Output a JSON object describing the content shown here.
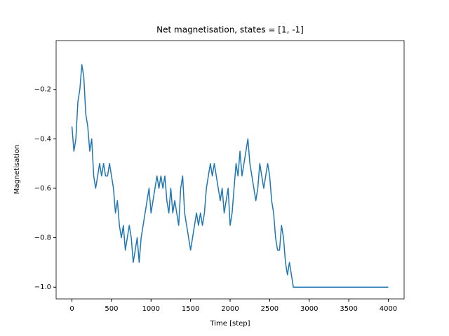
{
  "chart_data": {
    "type": "line",
    "title": "Net magnetisation, states = [1, -1]",
    "x_label": "Time [step]",
    "y_label": "Magnetisation",
    "x": [
      0,
      25,
      50,
      75,
      100,
      125,
      150,
      175,
      200,
      225,
      250,
      275,
      300,
      325,
      350,
      375,
      400,
      425,
      450,
      475,
      500,
      525,
      550,
      575,
      600,
      625,
      650,
      675,
      700,
      725,
      750,
      775,
      800,
      825,
      850,
      875,
      900,
      925,
      950,
      975,
      1000,
      1025,
      1050,
      1075,
      1100,
      1125,
      1150,
      1175,
      1200,
      1225,
      1250,
      1275,
      1300,
      1325,
      1350,
      1375,
      1400,
      1425,
      1450,
      1475,
      1500,
      1525,
      1550,
      1575,
      1600,
      1625,
      1650,
      1675,
      1700,
      1725,
      1750,
      1775,
      1800,
      1825,
      1850,
      1875,
      1900,
      1925,
      1950,
      1975,
      2000,
      2025,
      2050,
      2075,
      2100,
      2125,
      2150,
      2175,
      2200,
      2225,
      2250,
      2275,
      2300,
      2325,
      2350,
      2375,
      2400,
      2425,
      2450,
      2475,
      2500,
      2525,
      2550,
      2575,
      2600,
      2625,
      2650,
      2675,
      2700,
      2725,
      2750,
      2775,
      2800,
      4000
    ],
    "series": [
      {
        "name": "Magnetisation",
        "color": "#1f77b4",
        "values": [
          -0.35,
          -0.45,
          -0.4,
          -0.25,
          -0.2,
          -0.1,
          -0.15,
          -0.3,
          -0.35,
          -0.45,
          -0.4,
          -0.55,
          -0.6,
          -0.55,
          -0.5,
          -0.55,
          -0.5,
          -0.55,
          -0.55,
          -0.5,
          -0.55,
          -0.6,
          -0.7,
          -0.65,
          -0.75,
          -0.8,
          -0.75,
          -0.85,
          -0.8,
          -0.75,
          -0.8,
          -0.9,
          -0.85,
          -0.8,
          -0.9,
          -0.8,
          -0.75,
          -0.7,
          -0.65,
          -0.6,
          -0.7,
          -0.65,
          -0.6,
          -0.55,
          -0.6,
          -0.55,
          -0.6,
          -0.55,
          -0.65,
          -0.7,
          -0.6,
          -0.7,
          -0.65,
          -0.7,
          -0.75,
          -0.6,
          -0.55,
          -0.7,
          -0.75,
          -0.8,
          -0.85,
          -0.8,
          -0.75,
          -0.7,
          -0.75,
          -0.7,
          -0.75,
          -0.7,
          -0.6,
          -0.55,
          -0.5,
          -0.55,
          -0.5,
          -0.55,
          -0.6,
          -0.65,
          -0.6,
          -0.7,
          -0.65,
          -0.6,
          -0.75,
          -0.7,
          -0.6,
          -0.5,
          -0.55,
          -0.45,
          -0.55,
          -0.5,
          -0.45,
          -0.4,
          -0.5,
          -0.55,
          -0.6,
          -0.65,
          -0.6,
          -0.5,
          -0.55,
          -0.6,
          -0.55,
          -0.5,
          -0.55,
          -0.65,
          -0.7,
          -0.8,
          -0.85,
          -0.85,
          -0.75,
          -0.8,
          -0.9,
          -0.95,
          -0.9,
          -0.95,
          -1.0,
          -1.0
        ]
      }
    ],
    "xlim": [
      -200,
      4200
    ],
    "ylim": [
      -1.0475,
      -0.0025
    ],
    "xticks": [
      0,
      500,
      1000,
      1500,
      2000,
      2500,
      3000,
      3500,
      4000
    ],
    "yticks": [
      {
        "value": -1.0,
        "label": "−1.0"
      },
      {
        "value": -0.8,
        "label": "−0.8"
      },
      {
        "value": -0.6,
        "label": "−0.6"
      },
      {
        "value": -0.4,
        "label": "−0.4"
      },
      {
        "value": -0.2,
        "label": "−0.2"
      }
    ],
    "grid": false
  }
}
